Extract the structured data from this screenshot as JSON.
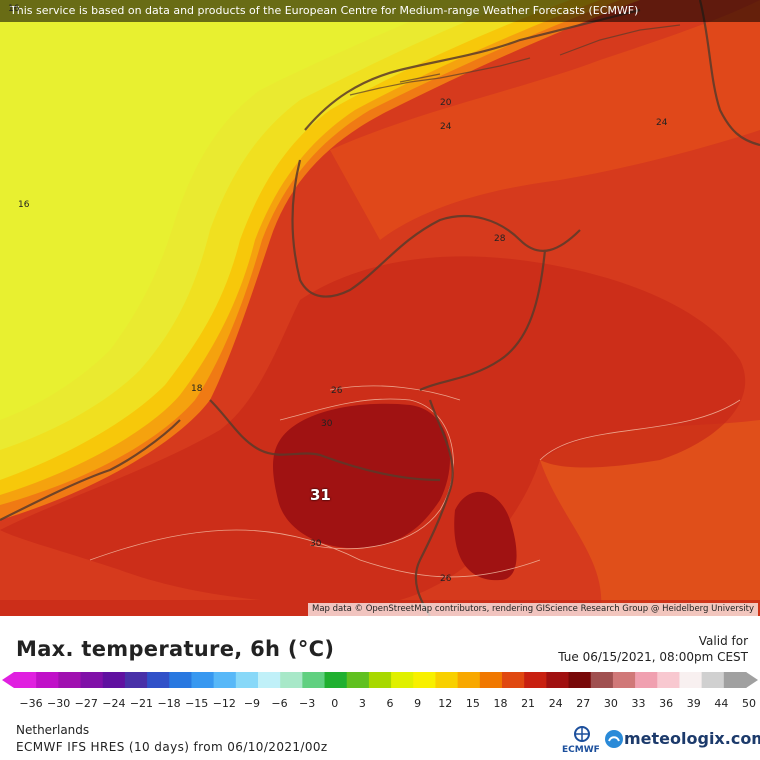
{
  "banner": "This service is based on data and products of the European Centre for Medium-range Weather Forecasts (ECMWF)",
  "attribution": "Map data © OpenStreetMap contributors, rendering GIScience Research Group @ Heidelberg University",
  "contour_labels": [
    "16",
    "20",
    "24",
    "24",
    "28",
    "18",
    "26",
    "30",
    "30",
    "26",
    "16"
  ],
  "max_value_label": "31",
  "title": "Max. temperature, 6h (°C)",
  "valid_label": "Valid for",
  "valid_date": "Tue 06/15/2021, 08:00pm CEST",
  "legend": {
    "ticks": [
      "-36",
      "-30",
      "-27",
      "-24",
      "-21",
      "-18",
      "-15",
      "-12",
      "-9",
      "-6",
      "-3",
      "0",
      "3",
      "6",
      "9",
      "12",
      "15",
      "18",
      "21",
      "24",
      "27",
      "30",
      "33",
      "36",
      "39",
      "44",
      "50"
    ],
    "colors": [
      "#e020e0",
      "#c010c8",
      "#a010b0",
      "#8010a8",
      "#6010a0",
      "#4830a8",
      "#3050c8",
      "#2878e0",
      "#3898f0",
      "#58b8f8",
      "#88d8f8",
      "#c0f0f8",
      "#a8e8c8",
      "#60d080",
      "#20b030",
      "#60c020",
      "#a8d800",
      "#e0f000",
      "#f8f000",
      "#f8d000",
      "#f8a800",
      "#f07800",
      "#e04810",
      "#c82010",
      "#a01010",
      "#780808",
      "#a05050",
      "#d07878",
      "#f0a0b0",
      "#f8c8d0",
      "#f8f0f0",
      "#d0d0d0",
      "#a0a0a0"
    ]
  },
  "region": "Netherlands",
  "model": "ECMWF IFS HRES (10 days) from 06/10/2021/00z",
  "logos": {
    "ecmwf": "ECMWF",
    "meteologix": "meteologix.com"
  }
}
